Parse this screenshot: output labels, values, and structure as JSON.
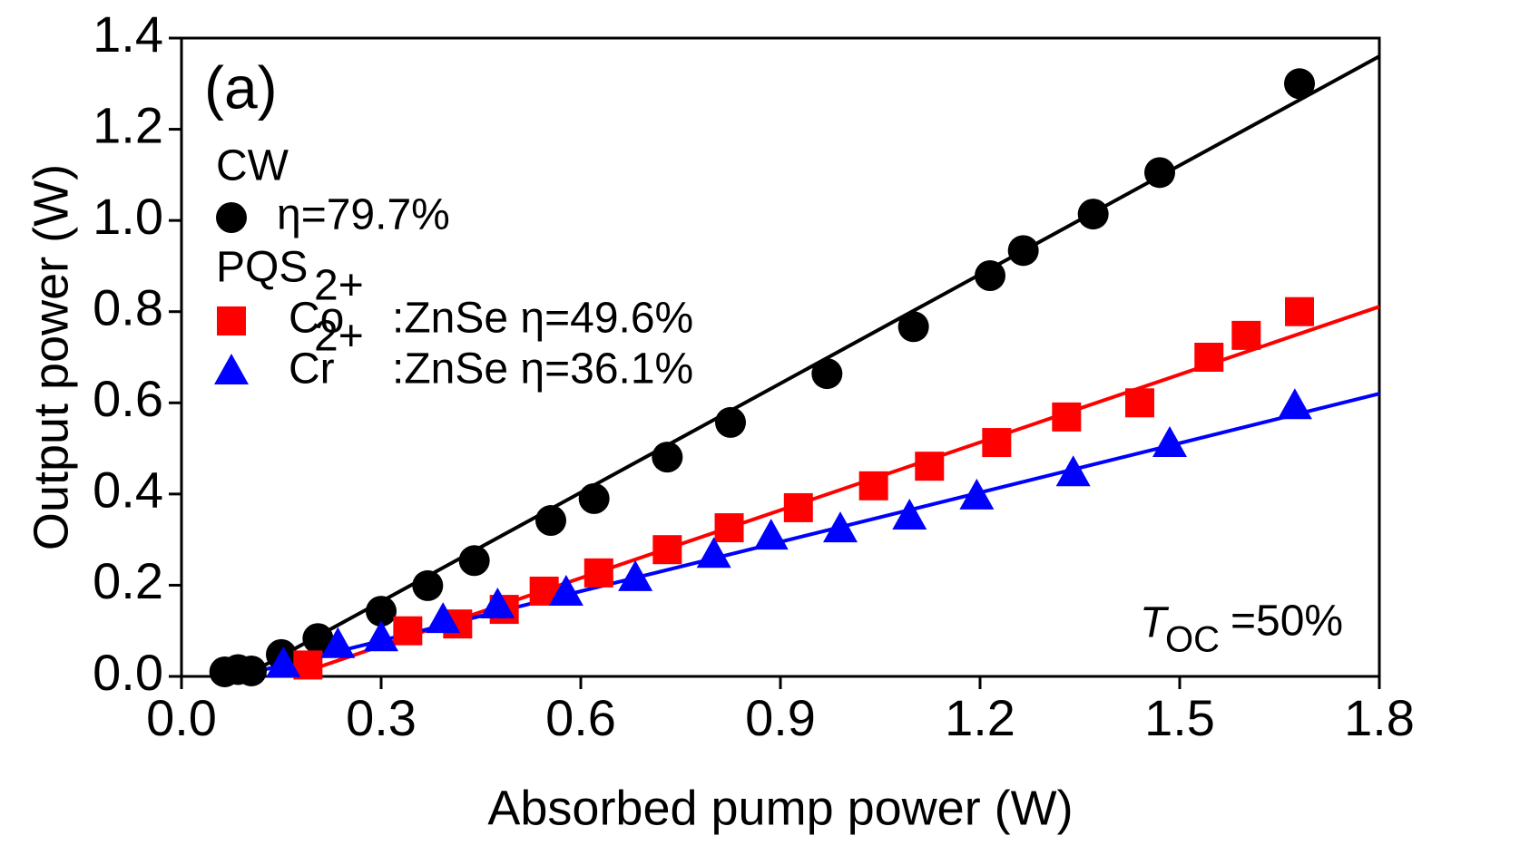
{
  "chart_data": {
    "type": "scatter",
    "panel_label": "(a)",
    "x_label": "Absorbed pump power (W)",
    "y_label": "Output power (W)",
    "xlim": [
      0,
      1.8
    ],
    "ylim": [
      0,
      1.4
    ],
    "xticks": [
      {
        "value": 0,
        "label": "0.0"
      },
      0.3,
      0.6,
      0.9,
      1.2,
      1.5,
      1.8
    ],
    "yticks": [
      {
        "value": 0,
        "label": "0.0"
      },
      0.2,
      0.4,
      0.6,
      0.8,
      {
        "value": 1,
        "label": "1.0"
      },
      1.2,
      1.4
    ],
    "legend_headings": [
      "CW",
      "PQS"
    ],
    "annotation": [
      "T",
      "OC",
      "=50%"
    ],
    "series": [
      {
        "name": [
          "η=79.7%"
        ],
        "color": "#000000",
        "marker": "circle",
        "x": [
          0.065,
          0.085,
          0.105,
          0.15,
          0.205,
          0.3,
          0.37,
          0.44,
          0.555,
          0.62,
          0.73,
          0.825,
          0.97,
          1.1,
          1.215,
          1.265,
          1.37,
          1.47,
          1.68
        ],
        "values": [
          0.01,
          0.015,
          0.012,
          0.048,
          0.083,
          0.143,
          0.199,
          0.254,
          0.342,
          0.39,
          0.481,
          0.557,
          0.664,
          0.767,
          0.879,
          0.934,
          1.014,
          1.105,
          1.3
        ],
        "fit": {
          "x": [
            0.094,
            1.8
          ],
          "values": [
            0,
            1.36
          ]
        }
      },
      {
        "name": [
          "Co",
          "2+",
          ":ZnSe η=49.6%"
        ],
        "color": "#ff0000",
        "marker": "square",
        "x": [
          0.19,
          0.34,
          0.415,
          0.485,
          0.545,
          0.627,
          0.73,
          0.823,
          0.927,
          1.04,
          1.124,
          1.225,
          1.33,
          1.44,
          1.544,
          1.6,
          1.68
        ],
        "values": [
          0.025,
          0.1,
          0.115,
          0.147,
          0.187,
          0.227,
          0.278,
          0.326,
          0.37,
          0.418,
          0.461,
          0.513,
          0.569,
          0.6,
          0.7,
          0.748,
          0.8
        ],
        "fit": {
          "x": [
            0.165,
            1.8
          ],
          "values": [
            0,
            0.811
          ]
        }
      },
      {
        "name": [
          "Cr",
          "2+",
          ":ZnSe η=36.1%"
        ],
        "color": "#0000ff",
        "marker": "triangle",
        "x": [
          0.153,
          0.235,
          0.3,
          0.393,
          0.475,
          0.578,
          0.682,
          0.8,
          0.886,
          0.99,
          1.094,
          1.195,
          1.34,
          1.485,
          1.673
        ],
        "values": [
          0.026,
          0.068,
          0.083,
          0.123,
          0.155,
          0.183,
          0.215,
          0.266,
          0.306,
          0.322,
          0.35,
          0.394,
          0.445,
          0.509,
          0.592
        ],
        "fit": {
          "x": [
            0.083,
            1.8
          ],
          "values": [
            0,
            0.62
          ]
        }
      }
    ]
  }
}
